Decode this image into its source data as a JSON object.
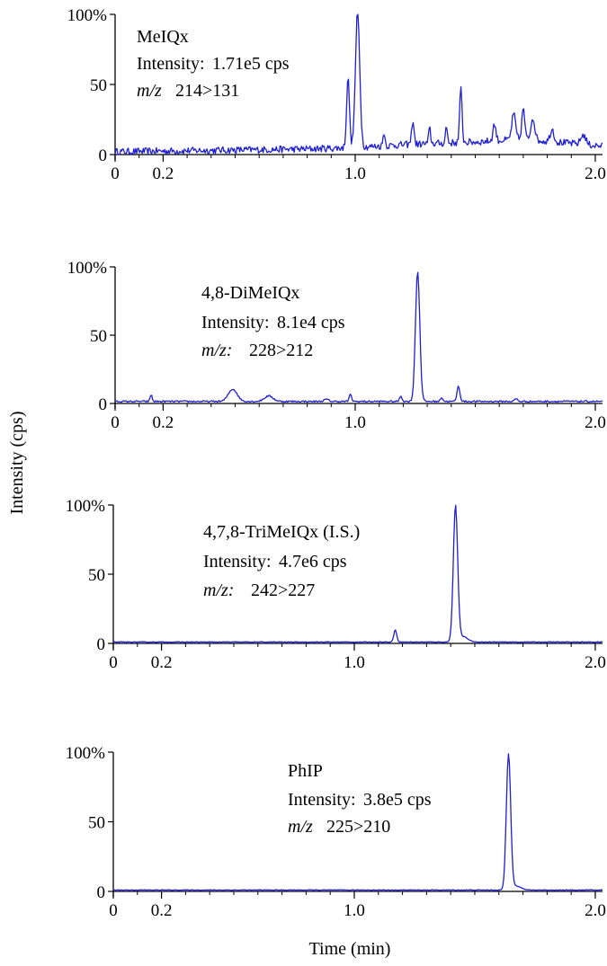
{
  "figure": {
    "ylabel": "Intensity  (cps)",
    "xlabel": "Time  (min)",
    "x_tick_labels": [
      "0",
      "0.2",
      "1.0",
      "2.0"
    ],
    "y_tick_labels": [
      "0",
      "50",
      "100%"
    ]
  },
  "chart_data": [
    {
      "type": "line",
      "compound": "MeIQx",
      "intensity_label": "Intensity:",
      "intensity_value": "1.71e5 cps",
      "mz_label": "m/z",
      "mz_value": "214>131",
      "xlim": [
        0,
        2.03
      ],
      "ylim": [
        0,
        100
      ],
      "x_ticks": [
        0,
        0.2,
        1.0,
        2.0
      ],
      "y_ticks": [
        0,
        50,
        100
      ],
      "line_color": "#1f1fd6",
      "series": [
        {
          "noise": 2.5,
          "baseline": [
            [
              0,
              2
            ],
            [
              0.8,
              4
            ],
            [
              1.0,
              5
            ],
            [
              1.2,
              7
            ],
            [
              1.5,
              9
            ],
            [
              1.7,
              11
            ],
            [
              2.03,
              6
            ]
          ],
          "peaks": [
            [
              0.97,
              50,
              0.006
            ],
            [
              1.01,
              96,
              0.009
            ],
            [
              1.12,
              10,
              0.004
            ],
            [
              1.24,
              17,
              0.005
            ],
            [
              1.31,
              11,
              0.004
            ],
            [
              1.38,
              12,
              0.004
            ],
            [
              1.44,
              38,
              0.005
            ],
            [
              1.58,
              12,
              0.006
            ],
            [
              1.66,
              18,
              0.008
            ],
            [
              1.7,
              22,
              0.006
            ],
            [
              1.74,
              16,
              0.008
            ],
            [
              1.82,
              9,
              0.008
            ],
            [
              1.95,
              7,
              0.01
            ]
          ]
        }
      ]
    },
    {
      "type": "line",
      "compound": "4,8-DiMeIQx",
      "intensity_label": "Intensity:",
      "intensity_value": "8.1e4 cps",
      "mz_label": "m/z:",
      "mz_value": "228>212",
      "xlim": [
        0,
        2.03
      ],
      "ylim": [
        0,
        100
      ],
      "x_ticks": [
        0,
        0.2,
        1.0,
        2.0
      ],
      "y_ticks": [
        0,
        50,
        100
      ],
      "line_color": "#1f1fd6",
      "series": [
        {
          "noise": 0.6,
          "baseline": [
            [
              0,
              1.5
            ],
            [
              2.03,
              1.5
            ]
          ],
          "peaks": [
            [
              0.15,
              5,
              0.004
            ],
            [
              0.49,
              9,
              0.018
            ],
            [
              0.64,
              4,
              0.018
            ],
            [
              0.88,
              1.5,
              0.01
            ],
            [
              0.98,
              5,
              0.005
            ],
            [
              1.19,
              4,
              0.005
            ],
            [
              1.26,
              95,
              0.009
            ],
            [
              1.36,
              3,
              0.005
            ],
            [
              1.43,
              11,
              0.006
            ],
            [
              1.67,
              2,
              0.006
            ]
          ]
        }
      ]
    },
    {
      "type": "line",
      "compound": "4,7,8-TriMeIQx  (I.S.)",
      "intensity_label": "Intensity:",
      "intensity_value": "4.7e6 cps",
      "mz_label": "m/z:",
      "mz_value": "242>227",
      "xlim": [
        0,
        2.03
      ],
      "ylim": [
        0,
        100
      ],
      "x_ticks": [
        0,
        0.2,
        1.0,
        2.0
      ],
      "y_ticks": [
        0,
        50,
        100
      ],
      "line_color": "#1f1fd6",
      "series": [
        {
          "noise": 0.2,
          "baseline": [
            [
              0,
              1
            ],
            [
              2.03,
              1
            ]
          ],
          "peaks": [
            [
              1.17,
              9,
              0.006
            ],
            [
              1.42,
              98,
              0.009
            ],
            [
              1.45,
              4,
              0.02
            ]
          ]
        }
      ]
    },
    {
      "type": "line",
      "compound": "PhIP",
      "intensity_label": "Intensity:",
      "intensity_value": "3.8e5 cps",
      "mz_label": "m/z",
      "mz_value": "225>210",
      "xlim": [
        0,
        2.03
      ],
      "ylim": [
        0,
        100
      ],
      "x_ticks": [
        0,
        0.2,
        1.0,
        2.0
      ],
      "y_ticks": [
        0,
        50,
        100
      ],
      "line_color": "#1f1fd6",
      "series": [
        {
          "noise": 0.2,
          "baseline": [
            [
              0,
              1
            ],
            [
              2.03,
              1
            ]
          ],
          "peaks": [
            [
              1.64,
              97,
              0.009
            ],
            [
              1.67,
              3,
              0.02
            ]
          ]
        }
      ]
    }
  ]
}
